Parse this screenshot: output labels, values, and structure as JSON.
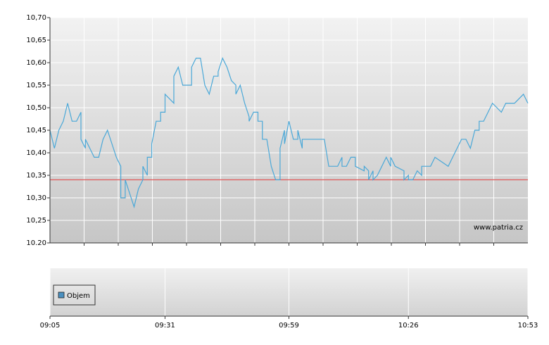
{
  "chart_data": {
    "type": "line",
    "x": [
      "09:05",
      "09:06",
      "09:07",
      "09:08",
      "09:09",
      "09:10",
      "09:11",
      "09:12",
      "09:12",
      "09:13",
      "09:13",
      "09:14",
      "09:14",
      "09:15",
      "09:16",
      "09:17",
      "09:18",
      "09:19",
      "09:20",
      "09:21",
      "09:21",
      "09:22",
      "09:22",
      "09:23",
      "09:24",
      "09:25",
      "09:26",
      "09:26",
      "09:27",
      "09:27",
      "09:28",
      "09:28",
      "09:29",
      "09:30",
      "09:30",
      "09:31",
      "09:31",
      "09:33",
      "09:33",
      "09:34",
      "09:34",
      "09:35",
      "09:37",
      "09:37",
      "09:38",
      "09:39",
      "09:40",
      "09:41",
      "09:42",
      "09:43",
      "09:43",
      "09:44",
      "09:45",
      "09:46",
      "09:47",
      "09:47",
      "09:48",
      "09:49",
      "09:50",
      "09:50",
      "09:51",
      "09:52",
      "09:52",
      "09:53",
      "09:53",
      "09:54",
      "09:55",
      "09:56",
      "09:57",
      "09:57",
      "09:58",
      "09:58",
      "09:59",
      "10:00",
      "10:01",
      "10:01",
      "10:02",
      "10:02",
      "10:07",
      "10:08",
      "10:10",
      "10:11",
      "10:11",
      "10:12",
      "10:13",
      "10:14",
      "10:14",
      "10:16",
      "10:16",
      "10:17",
      "10:17",
      "10:18",
      "10:18",
      "10:19",
      "10:20",
      "10:21",
      "10:21",
      "10:22",
      "10:22",
      "10:22",
      "10:23",
      "10:25",
      "10:25",
      "10:26",
      "10:26",
      "10:27",
      "10:28",
      "10:29",
      "10:29",
      "10:31",
      "10:32",
      "10:35",
      "10:35",
      "10:36",
      "10:37",
      "10:38",
      "10:39",
      "10:40",
      "10:41",
      "10:41",
      "10:42",
      "10:42",
      "10:43",
      "10:44",
      "10:45",
      "10:46",
      "10:47",
      "10:48",
      "10:50",
      "10:52",
      "10:53"
    ],
    "series": [
      {
        "color": "#4aa8d8",
        "values": [
          10.45,
          10.41,
          10.45,
          10.47,
          10.51,
          10.47,
          10.47,
          10.49,
          10.43,
          10.41,
          10.43,
          10.41,
          10.41,
          10.39,
          10.39,
          10.43,
          10.45,
          10.42,
          10.39,
          10.37,
          10.3,
          10.3,
          10.34,
          10.31,
          10.28,
          10.32,
          10.34,
          10.37,
          10.35,
          10.39,
          10.39,
          10.42,
          10.47,
          10.47,
          10.49,
          10.49,
          10.53,
          10.51,
          10.57,
          10.59,
          10.59,
          10.55,
          10.55,
          10.59,
          10.61,
          10.61,
          10.55,
          10.53,
          10.57,
          10.57,
          10.58,
          10.61,
          10.59,
          10.56,
          10.55,
          10.53,
          10.55,
          10.51,
          10.48,
          10.47,
          10.49,
          10.49,
          10.47,
          10.47,
          10.43,
          10.43,
          10.37,
          10.34,
          10.34,
          10.41,
          10.45,
          10.42,
          10.47,
          10.43,
          10.43,
          10.45,
          10.41,
          10.43,
          10.43,
          10.37,
          10.37,
          10.39,
          10.37,
          10.37,
          10.39,
          10.39,
          10.37,
          10.36,
          10.37,
          10.36,
          10.34,
          10.36,
          10.34,
          10.35,
          10.37,
          10.39,
          10.39,
          10.37,
          10.39,
          10.39,
          10.37,
          10.36,
          10.34,
          10.35,
          10.34,
          10.34,
          10.36,
          10.35,
          10.37,
          10.37,
          10.39,
          10.37,
          10.37,
          10.39,
          10.41,
          10.43,
          10.43,
          10.41,
          10.45,
          10.45,
          10.45,
          10.47,
          10.47,
          10.49,
          10.51,
          10.5,
          10.49,
          10.51,
          10.51,
          10.53,
          10.51
        ]
      }
    ],
    "reference_line": {
      "value": 10.34,
      "color": "#e05a5a"
    },
    "volume_series": {
      "name": "Objem",
      "color": "#4a90c0"
    },
    "watermark": "www.patria.cz",
    "xlim": [
      "09:05",
      "10:53"
    ],
    "xticks": [
      "09:05",
      "09:31",
      "09:59",
      "10:26",
      "10:53"
    ],
    "ylim": [
      10.2,
      10.7
    ],
    "yticks": [
      {
        "value": 10.2,
        "label": "10.20"
      },
      {
        "value": 10.25,
        "label": "10,25"
      },
      {
        "value": 10.3,
        "label": "10,30"
      },
      {
        "value": 10.35,
        "label": "10,35"
      },
      {
        "value": 10.4,
        "label": "10,40"
      },
      {
        "value": 10.45,
        "label": "10,45"
      },
      {
        "value": 10.5,
        "label": "10,50"
      },
      {
        "value": 10.55,
        "label": "10,55"
      },
      {
        "value": 10.6,
        "label": "10,60"
      },
      {
        "value": 10.65,
        "label": "10,65"
      },
      {
        "value": 10.7,
        "label": "10,70"
      }
    ],
    "grid": true
  }
}
